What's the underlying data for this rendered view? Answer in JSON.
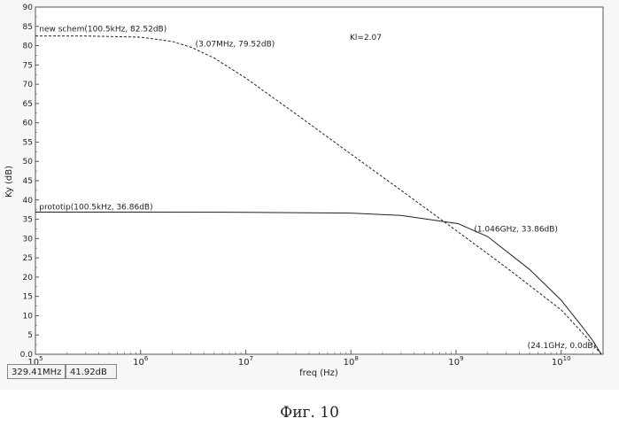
{
  "chart_data": {
    "type": "line",
    "xlabel": "freq (Hz)",
    "ylabel": "Ky (dB)",
    "xscale": "log",
    "xlim": [
      100000,
      25000000000
    ],
    "ylim": [
      0,
      90
    ],
    "x_ticks": [
      {
        "base": "10",
        "exp": "5"
      },
      {
        "base": "10",
        "exp": "6"
      },
      {
        "base": "10",
        "exp": "7"
      },
      {
        "base": "10",
        "exp": "8"
      },
      {
        "base": "10",
        "exp": "9"
      },
      {
        "base": "10",
        "exp": "10"
      }
    ],
    "y_ticks": [
      "0.0",
      "5",
      "10",
      "15",
      "20",
      "25",
      "30",
      "35",
      "40",
      "45",
      "50",
      "55",
      "60",
      "65",
      "70",
      "75",
      "80",
      "85",
      "90"
    ],
    "series": [
      {
        "name": "new schem",
        "style": "dashed",
        "points": [
          [
            100000,
            82.52
          ],
          [
            300000,
            82.5
          ],
          [
            1000000,
            82.2
          ],
          [
            2000000,
            81.1
          ],
          [
            3070000,
            79.52
          ],
          [
            5000000,
            76.8
          ],
          [
            10000000,
            71.6
          ],
          [
            30000000,
            62.3
          ],
          [
            100000000,
            51.9
          ],
          [
            300000000,
            42.5
          ],
          [
            1000000000,
            32.1
          ],
          [
            3000000000,
            22.5
          ],
          [
            10000000000,
            11.5
          ],
          [
            16000000000,
            5.5
          ],
          [
            20000000000,
            2.5
          ],
          [
            24100000000,
            0
          ]
        ]
      },
      {
        "name": "prototip",
        "style": "solid",
        "points": [
          [
            100000,
            36.86
          ],
          [
            1000000,
            36.86
          ],
          [
            10000000,
            36.8
          ],
          [
            100000000,
            36.6
          ],
          [
            300000000,
            36.0
          ],
          [
            600000000,
            34.8
          ],
          [
            1046000000,
            33.86
          ],
          [
            2000000000,
            30.5
          ],
          [
            5000000000,
            22.0
          ],
          [
            10000000000,
            14.0
          ],
          [
            16000000000,
            7.0
          ],
          [
            20000000000,
            3.5
          ],
          [
            24100000000,
            0
          ]
        ]
      }
    ],
    "annotations": [
      {
        "text": "new schem(100.5kHz, 82.52dB)",
        "x": 100500,
        "y": 82.52
      },
      {
        "text": "(3.07MHz, 79.52dB)",
        "x": 3070000,
        "y": 79.52
      },
      {
        "text": "prototip(100.5kHz, 36.86dB)",
        "x": 100500,
        "y": 36.86
      },
      {
        "text": "(1.046GHz, 33.86dB)",
        "x": 1046000000,
        "y": 33.86
      },
      {
        "text": "(24.1GHz, 0.0dB)",
        "x": 24100000000,
        "y": 0
      },
      {
        "text": "Kl=2.07"
      }
    ],
    "grid": false,
    "legend": "none"
  },
  "status": {
    "cursor_x": "329.41MHz",
    "cursor_y": "41.92dB"
  },
  "caption": "Фиг. 10"
}
